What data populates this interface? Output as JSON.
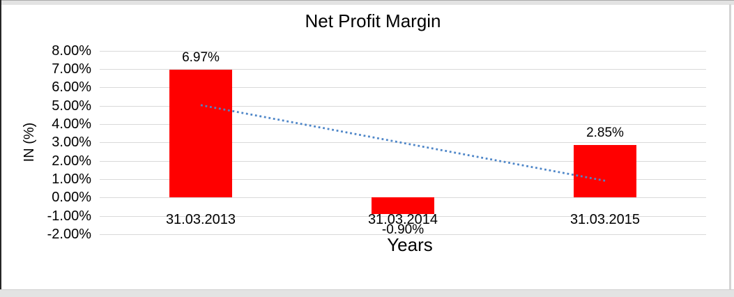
{
  "chart_data": {
    "type": "bar",
    "title": "Net Profit Margin",
    "xlabel": "Years",
    "ylabel": "IN (%)",
    "categories": [
      "31.03.2013",
      "31.03.2014",
      "31.03.2015"
    ],
    "values": [
      6.97,
      -0.9,
      2.85
    ],
    "data_labels": [
      "6.97%",
      "-0.90%",
      "2.85%"
    ],
    "y_tick_labels": [
      "8.00%",
      "7.00%",
      "6.00%",
      "5.00%",
      "4.00%",
      "3.00%",
      "2.00%",
      "1.00%",
      "0.00%",
      "-1.00%",
      "-2.00%"
    ],
    "y_tick_values": [
      8,
      7,
      6,
      5,
      4,
      3,
      2,
      1,
      0,
      -1,
      -2
    ],
    "ylim": [
      -2,
      8
    ],
    "ytick_step": 1,
    "grid": true,
    "legend": false,
    "bar_color": "#FF0000",
    "gridline_color": "#D9D9D9",
    "trendline": {
      "type": "linear",
      "style": "dotted",
      "color": "#4E86C8",
      "start_value": 5.03,
      "end_value": 0.91
    }
  },
  "frame": {
    "canvas_color": "#FFFFFF",
    "top_strip_color": "#E3E3E3",
    "bottom_strip_color": "#E3E3E3",
    "left_line_color": "#262626",
    "right_line_color": "#D4D4D4"
  }
}
